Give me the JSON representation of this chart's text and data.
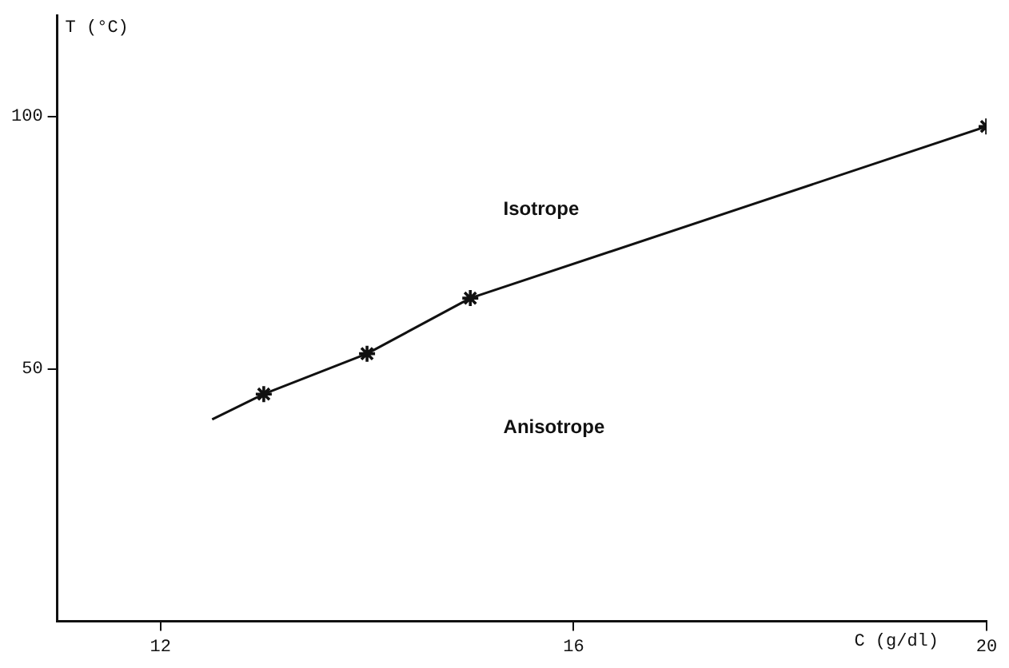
{
  "chart_data": {
    "type": "line",
    "xlabel": "C (g/dl)",
    "ylabel": "T (°C)",
    "xlim": [
      11,
      20
    ],
    "xticks": [
      12,
      16,
      20
    ],
    "ylim": [
      0,
      120
    ],
    "yticks": [
      50,
      100
    ],
    "grid": false,
    "legend": false,
    "series": [
      {
        "type": "line",
        "color": "#111111",
        "marker": "none",
        "x": [
          12.5,
          13,
          14,
          15,
          20
        ],
        "values": [
          40,
          45,
          53,
          64,
          98
        ]
      },
      {
        "type": "scatter",
        "color": "#111111",
        "marker": "cross",
        "x": [
          13,
          14,
          15,
          20
        ],
        "values": [
          45,
          53,
          64,
          98
        ]
      }
    ],
    "annotations": [
      "Isotrope",
      "Anisotrope"
    ]
  }
}
